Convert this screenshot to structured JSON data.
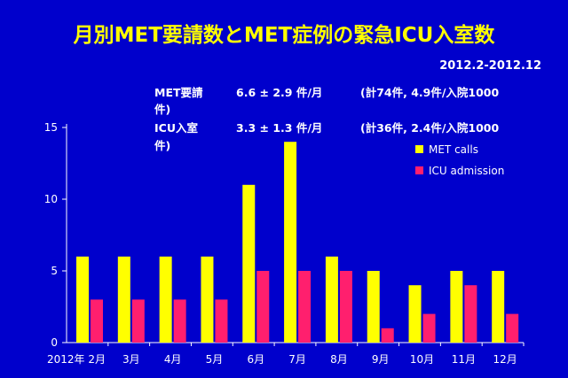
{
  "title": "月別MET要請数とMET症例の緊急ICU入室数",
  "period": "2012.2-2012.12",
  "stats": [
    {
      "label": "MET要請",
      "value": "6.6 ± 2.9 件/月",
      "note": "(計74件, 4.9件/入院1000",
      "cont": "件)"
    },
    {
      "label": "ICU入室",
      "value": "3.3 ± 1.3 件/月",
      "note": "(計36件, 2.4件/入院1000",
      "cont": "件)"
    }
  ],
  "colors": {
    "background": "#0000cc",
    "met": "#ffff00",
    "icu": "#ff1f6e",
    "title": "#ffff00"
  },
  "chart_data": {
    "type": "bar",
    "categories": [
      "2012年 2月",
      "3月",
      "4月",
      "5月",
      "6月",
      "7月",
      "8月",
      "9月",
      "10月",
      "11月",
      "12月"
    ],
    "series": [
      {
        "name": "MET calls",
        "values": [
          6,
          6,
          6,
          6,
          11,
          14,
          6,
          5,
          4,
          5,
          5
        ]
      },
      {
        "name": "ICU admission",
        "values": [
          3,
          3,
          3,
          3,
          5,
          5,
          5,
          1,
          2,
          4,
          2
        ]
      }
    ],
    "yticks": [
      0,
      5,
      10,
      15
    ],
    "ylim": [
      0,
      15
    ],
    "legend_position": "top-right",
    "grid": false
  }
}
